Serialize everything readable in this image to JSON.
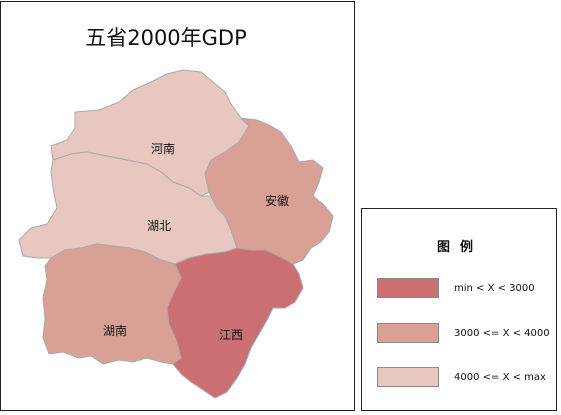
{
  "map": {
    "title": "五省2000年GDP",
    "provinces": [
      {
        "key": "henan",
        "name": "河南",
        "gdp_class": "4000 <= X < max",
        "color": "#e7c7bf"
      },
      {
        "key": "hubei",
        "name": "湖北",
        "gdp_class": "4000 <= X < max",
        "color": "#e7c7bf"
      },
      {
        "key": "anhui",
        "name": "安徽",
        "gdp_class": "3000 <= X < 4000",
        "color": "#d9a096"
      },
      {
        "key": "hunan",
        "name": "湖南",
        "gdp_class": "3000 <= X < 4000",
        "color": "#d9a096"
      },
      {
        "key": "jiangxi",
        "name": "江西",
        "gdp_class": "min < X < 3000",
        "color": "#cb6f73"
      }
    ],
    "border_color": "#aaaaaa"
  },
  "legend": {
    "title": "图例",
    "items": [
      {
        "label": "min < X < 3000",
        "color": "#cb6f73"
      },
      {
        "label": "3000 <= X < 4000",
        "color": "#d9a096"
      },
      {
        "label": "4000 <= X < max",
        "color": "#e7c7bf"
      }
    ]
  }
}
